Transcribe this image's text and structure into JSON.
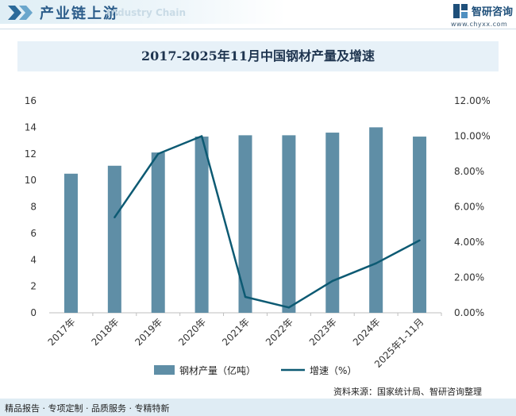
{
  "header": {
    "title": "产业链上游",
    "subtitle": "Industry Chain",
    "logo_name": "智研咨询",
    "logo_url": "www.chyxx.com"
  },
  "footer": {
    "tags": "精品报告 · 专项定制 · 品质服务 · 专精特新",
    "source": "资料来源：国家统计局、智研咨询整理"
  },
  "colors": {
    "bar": "#5f8ea6",
    "line": "#0d5a73",
    "title_band": "#e7f1f8"
  },
  "chart_data": {
    "type": "bar",
    "title": "2017-2025年11月中国钢材产量及增速",
    "categories": [
      "2017年",
      "2018年",
      "2019年",
      "2020年",
      "2021年",
      "2022年",
      "2023年",
      "2024年",
      "2025年1-11月"
    ],
    "series": [
      {
        "name": "钢材产量（亿吨）",
        "type": "bar",
        "axis": "left",
        "values": [
          10.5,
          11.1,
          12.1,
          13.3,
          13.4,
          13.4,
          13.6,
          14.0,
          13.3
        ]
      },
      {
        "name": "增速（%）",
        "type": "line",
        "axis": "right",
        "values": [
          null,
          5.4,
          9.0,
          10.0,
          0.9,
          0.3,
          1.8,
          2.8,
          4.1
        ]
      }
    ],
    "y_left": {
      "min": 0,
      "max": 16,
      "ticks": [
        "0",
        "2",
        "4",
        "6",
        "8",
        "10",
        "12",
        "14",
        "16"
      ]
    },
    "y_right": {
      "min": 0,
      "max": 12,
      "ticks": [
        "0.00%",
        "2.00%",
        "4.00%",
        "6.00%",
        "8.00%",
        "10.00%",
        "12.00%"
      ]
    },
    "legend": [
      "钢材产量（亿吨）",
      "增速（%）"
    ]
  }
}
